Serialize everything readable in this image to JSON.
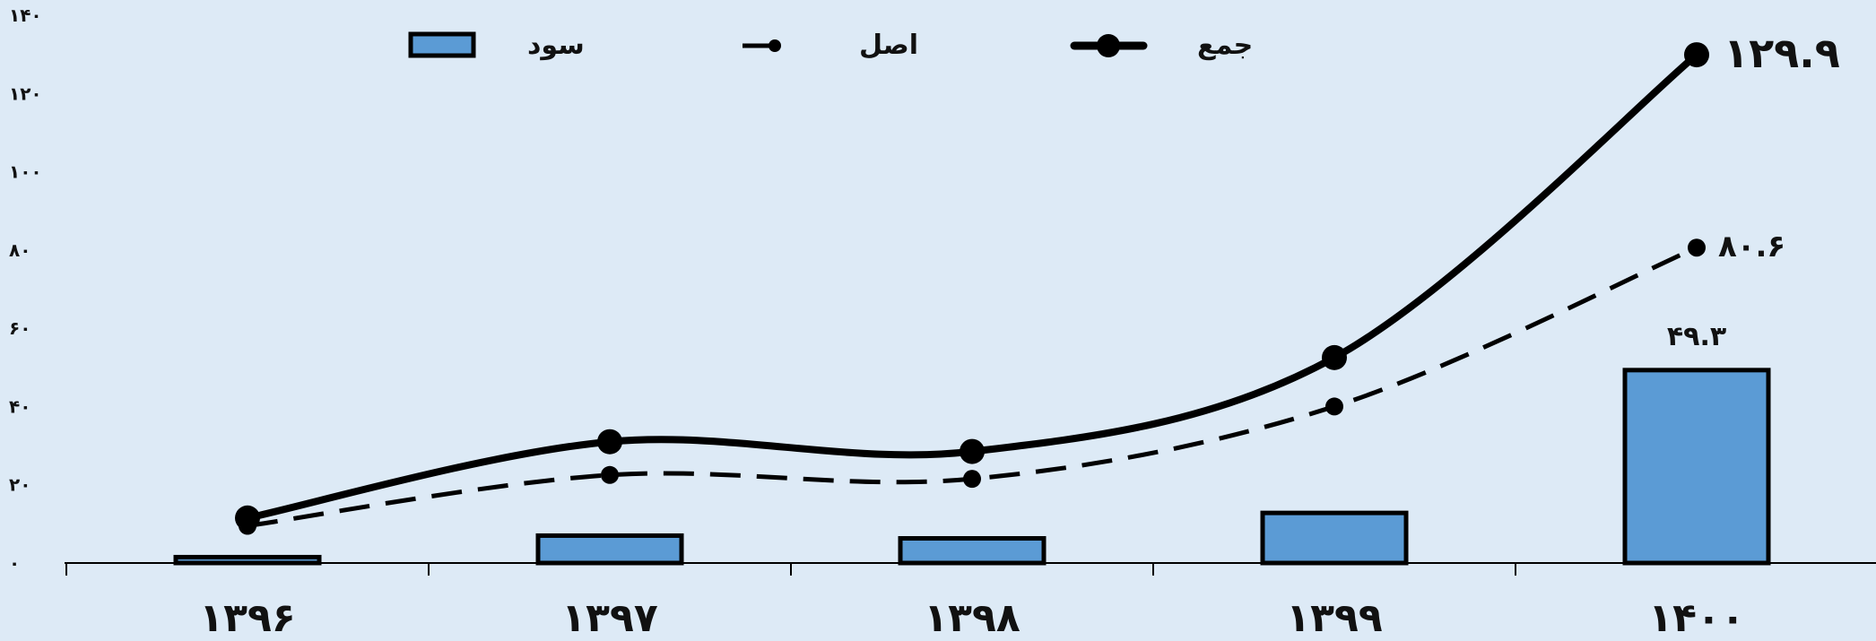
{
  "chart_data": {
    "type": "bar",
    "categories": [
      "۱۳۹۶",
      "۱۳۹۷",
      "۱۳۹۸",
      "۱۳۹۹",
      "۱۴۰۰"
    ],
    "y_ticks": [
      "۰",
      "۲۰",
      "۴۰",
      "۶۰",
      "۸۰",
      "۱۰۰",
      "۱۲۰",
      "۱۴۰"
    ],
    "ylim": [
      0,
      140
    ],
    "grid": false,
    "legend_position": "top",
    "series": [
      {
        "name": "سود",
        "kind": "bar",
        "values": [
          1.5,
          7,
          6.3,
          12.8,
          49.3
        ],
        "color": "#5b9bd5"
      },
      {
        "name": "اصل",
        "kind": "line-dashed",
        "values": [
          9.5,
          22.5,
          21.5,
          40,
          80.6
        ],
        "color": "#000000"
      },
      {
        "name": "جمع",
        "kind": "line-solid",
        "values": [
          11.5,
          31,
          28.5,
          52.5,
          129.9
        ],
        "color": "#000000"
      }
    ],
    "annotations": {
      "total_last": "۱۲۹.۹",
      "principal_last": "۸۰.۶",
      "profit_last": "۴۹.۳"
    }
  }
}
